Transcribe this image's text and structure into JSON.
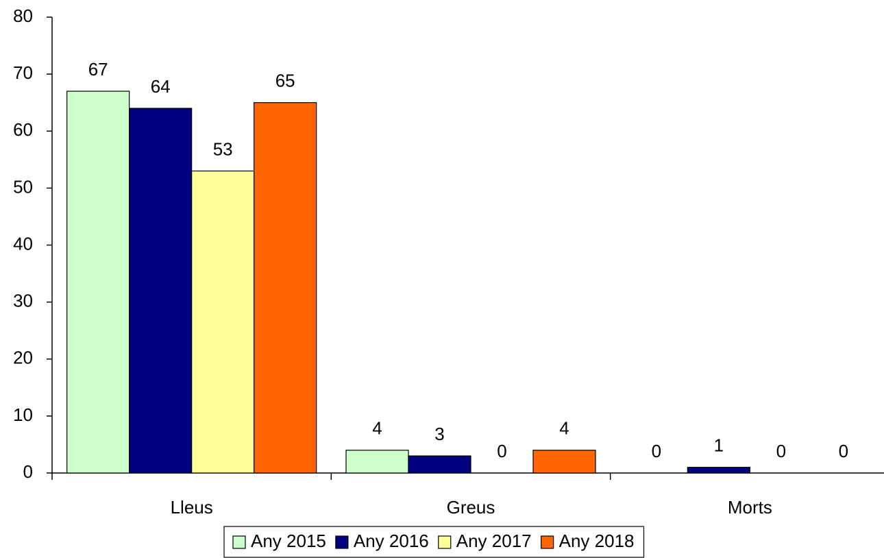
{
  "chart_data": {
    "type": "bar",
    "categories": [
      "Lleus",
      "Greus",
      "Morts"
    ],
    "series": [
      {
        "name": "Any 2015",
        "color": "#ccffcc",
        "values": [
          67,
          4,
          0
        ]
      },
      {
        "name": "Any 2016",
        "color": "#000080",
        "values": [
          64,
          3,
          1
        ]
      },
      {
        "name": "Any 2017",
        "color": "#ffff99",
        "values": [
          53,
          0,
          0
        ]
      },
      {
        "name": "Any 2018",
        "color": "#ff6600",
        "values": [
          65,
          4,
          0
        ]
      }
    ],
    "ylim": [
      0,
      80
    ],
    "yticks": [
      0,
      10,
      20,
      30,
      40,
      50,
      60,
      70,
      80
    ],
    "grid": false,
    "legend": "bottom",
    "data_labels": true
  }
}
